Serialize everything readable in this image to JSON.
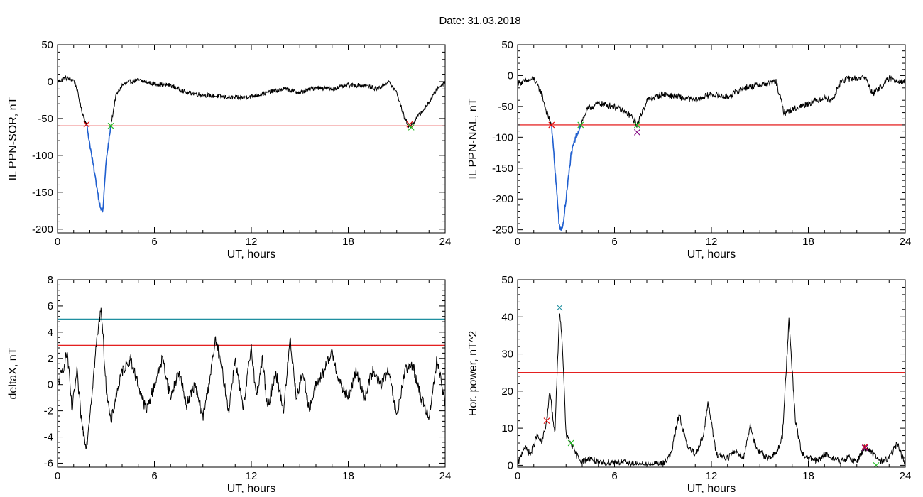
{
  "figure": {
    "title": "Date:  31.03.2018"
  },
  "chart_data": [
    {
      "type": "line",
      "xlabel": "UT, hours",
      "ylabel": "IL PPN-SOR, nT",
      "xlim": [
        0,
        24
      ],
      "ylim": [
        -205,
        50
      ],
      "xticks": [
        0,
        6,
        12,
        18,
        24
      ],
      "yticks": [
        50,
        0,
        -50,
        -100,
        -150,
        -200
      ],
      "grid": false,
      "hlines": [
        {
          "y": -60,
          "color": "#e00000"
        }
      ],
      "series": [
        {
          "color": "#000000",
          "x": [
            0,
            0.5,
            1.0,
            1.2,
            1.5,
            1.8,
            2.0,
            2.3,
            2.6,
            2.8,
            3.0,
            3.3,
            3.6,
            4.0,
            4.5,
            5,
            6,
            7,
            8,
            9,
            10,
            11,
            12,
            13,
            14,
            15,
            16,
            17,
            18,
            19,
            19.8,
            20.5,
            21.0,
            21.5,
            21.8,
            22.2,
            22.8,
            23.5,
            24
          ],
          "y": [
            0,
            5,
            2,
            -10,
            -40,
            -58,
            -85,
            -125,
            -165,
            -178,
            -110,
            -60,
            -20,
            -5,
            0,
            2,
            -3,
            -5,
            -15,
            -18,
            -20,
            -22,
            -20,
            -15,
            -10,
            -15,
            -8,
            -10,
            -5,
            -5,
            -10,
            0,
            -15,
            -50,
            -62,
            -50,
            -35,
            -10,
            0
          ]
        }
      ],
      "highlight": {
        "color": "#1f5fd0",
        "x_range": [
          1.8,
          3.3
        ]
      },
      "markers": [
        {
          "x": 1.8,
          "y": -58,
          "color": "#e00000"
        },
        {
          "x": 3.3,
          "y": -60,
          "color": "#22bb22"
        },
        {
          "x": 21.8,
          "y": -58,
          "color": "#e00000"
        },
        {
          "x": 21.9,
          "y": -62,
          "color": "#22bb22"
        }
      ]
    },
    {
      "type": "line",
      "xlabel": "UT, hours",
      "ylabel": "IL PPN-NAL, nT",
      "xlim": [
        0,
        24
      ],
      "ylim": [
        -255,
        50
      ],
      "xticks": [
        0,
        6,
        12,
        18,
        24
      ],
      "yticks": [
        50,
        0,
        -50,
        -100,
        -150,
        -200,
        -250
      ],
      "grid": false,
      "hlines": [
        {
          "y": -80,
          "color": "#e00000"
        }
      ],
      "series": [
        {
          "color": "#000000",
          "x": [
            0,
            0.5,
            1.0,
            1.5,
            1.8,
            2.1,
            2.4,
            2.6,
            2.8,
            3.0,
            3.3,
            3.6,
            3.9,
            4.3,
            5,
            6,
            7,
            7.4,
            8,
            9,
            10,
            11,
            12,
            13,
            14,
            15,
            16,
            16.5,
            17,
            18,
            19,
            19.5,
            20,
            20.5,
            21,
            21.5,
            22,
            23,
            24
          ],
          "y": [
            -12,
            -10,
            -5,
            -30,
            -60,
            -80,
            -180,
            -250,
            -245,
            -200,
            -130,
            -100,
            -80,
            -55,
            -45,
            -50,
            -65,
            -80,
            -40,
            -30,
            -35,
            -40,
            -30,
            -35,
            -20,
            -15,
            -10,
            -60,
            -55,
            -45,
            -35,
            -40,
            -10,
            -5,
            -5,
            -2,
            -30,
            -5,
            -10
          ]
        }
      ],
      "highlight": {
        "color": "#1f5fd0",
        "x_range": [
          2.1,
          3.9
        ]
      },
      "markers": [
        {
          "x": 2.1,
          "y": -80,
          "color": "#e00000"
        },
        {
          "x": 3.9,
          "y": -80,
          "color": "#22bb22"
        },
        {
          "x": 7.4,
          "y": -92,
          "color": "#800080"
        },
        {
          "x": 7.4,
          "y": -80,
          "color": "#22bb22"
        }
      ]
    },
    {
      "type": "line",
      "xlabel": "UT, hours",
      "ylabel": "deltaX, nT",
      "xlim": [
        0,
        24
      ],
      "ylim": [
        -6.3,
        8
      ],
      "xticks": [
        0,
        6,
        12,
        18,
        24
      ],
      "yticks": [
        8,
        6,
        4,
        2,
        0,
        -2,
        -4,
        -6
      ],
      "grid": false,
      "hlines": [
        {
          "y": 5,
          "color": "#1f8fa0"
        },
        {
          "y": 3,
          "color": "#e00000"
        }
      ],
      "series": [
        {
          "color": "#000000",
          "x": [
            0,
            0.3,
            0.6,
            0.9,
            1.2,
            1.5,
            1.8,
            2.1,
            2.4,
            2.7,
            3.0,
            3.3,
            3.6,
            4.0,
            4.5,
            5.0,
            5.5,
            6.0,
            6.5,
            7.0,
            7.5,
            8.0,
            8.5,
            9.0,
            9.5,
            9.8,
            10.2,
            10.6,
            11.0,
            11.5,
            12.0,
            12.3,
            12.7,
            13.0,
            13.5,
            14.0,
            14.4,
            14.8,
            15.2,
            15.6,
            16.0,
            16.5,
            17.0,
            17.5,
            18.0,
            18.5,
            19.0,
            19.5,
            20.0,
            20.5,
            21.0,
            21.5,
            22.0,
            22.5,
            23.0,
            23.5,
            24
          ],
          "y": [
            0,
            1,
            2.5,
            -2,
            1,
            -3,
            -4.7,
            -1,
            3,
            6,
            0,
            -3,
            -1,
            1,
            2,
            0,
            -2,
            0,
            2,
            -1,
            1,
            -1.5,
            0,
            -2.5,
            1,
            3.5,
            1,
            -2,
            2,
            -2,
            3,
            -1,
            2,
            -2,
            1,
            -2,
            3.5,
            -1,
            1,
            -2,
            0,
            1,
            2.5,
            0,
            -1,
            1,
            -1,
            1,
            0,
            1,
            -2.5,
            1,
            1.5,
            -1,
            -2.5,
            2,
            -1.5
          ]
        }
      ],
      "markers": []
    },
    {
      "type": "line",
      "xlabel": "UT, hours",
      "ylabel": "Hor. power, nT^2",
      "xlim": [
        0,
        24
      ],
      "ylim": [
        -0.5,
        50
      ],
      "xticks": [
        0,
        6,
        12,
        18,
        24
      ],
      "yticks": [
        50,
        40,
        30,
        20,
        10,
        0
      ],
      "grid": false,
      "hlines": [
        {
          "y": 25,
          "color": "#e00000"
        }
      ],
      "series": [
        {
          "color": "#000000",
          "x": [
            0,
            0.4,
            0.8,
            1.2,
            1.5,
            1.8,
            2.0,
            2.3,
            2.6,
            2.8,
            3.0,
            3.3,
            3.6,
            4.0,
            4.5,
            5,
            6,
            7,
            8,
            9,
            9.5,
            10,
            10.5,
            11,
            11.5,
            11.8,
            12.3,
            13,
            13.5,
            14,
            14.4,
            14.8,
            15.5,
            16,
            16.4,
            16.8,
            17.2,
            17.6,
            18,
            18.5,
            19,
            19.5,
            20,
            20.5,
            21,
            21.5,
            22,
            22.5,
            23,
            23.5,
            24
          ],
          "y": [
            0,
            5,
            3,
            8,
            6,
            12,
            20,
            8,
            42,
            30,
            8,
            6,
            3,
            1,
            2,
            0.5,
            1,
            0.5,
            0,
            0.5,
            3,
            14,
            5,
            3,
            8,
            17,
            3,
            2,
            4,
            2,
            11,
            4,
            2,
            3,
            8,
            39,
            12,
            3,
            2,
            1,
            3,
            2,
            1,
            2,
            1,
            5,
            3,
            1,
            2,
            6,
            0
          ]
        }
      ],
      "markers": [
        {
          "x": 1.8,
          "y": 12,
          "color": "#e00000"
        },
        {
          "x": 2.6,
          "y": 42.5,
          "color": "#1f8fa0"
        },
        {
          "x": 3.3,
          "y": 6,
          "color": "#22bb22"
        },
        {
          "x": 21.5,
          "y": 5,
          "color": "#e00000"
        },
        {
          "x": 21.5,
          "y": 4.7,
          "color": "#800080"
        },
        {
          "x": 22.2,
          "y": 0,
          "color": "#22bb22"
        }
      ]
    }
  ]
}
